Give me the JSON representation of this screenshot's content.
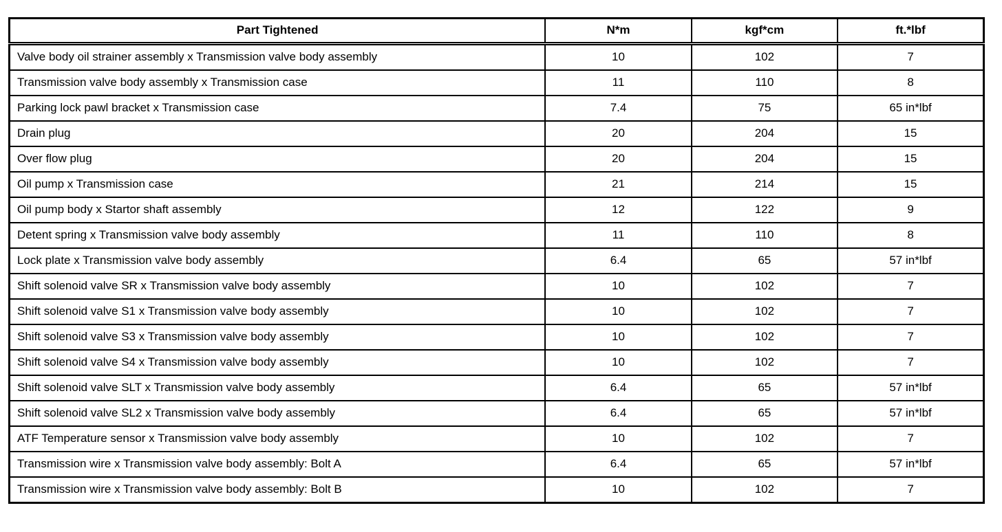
{
  "colors": {
    "background": "#ffffff",
    "border": "#000000",
    "text": "#000000"
  },
  "table": {
    "columns": [
      {
        "key": "part",
        "label": "Part Tightened"
      },
      {
        "key": "nm",
        "label": "N*m"
      },
      {
        "key": "kgfcm",
        "label": "kgf*cm"
      },
      {
        "key": "ftlbf",
        "label": "ft.*lbf"
      }
    ],
    "rows": [
      {
        "part": "Valve body oil strainer assembly x Transmission valve body assembly",
        "nm": "10",
        "kgfcm": "102",
        "ftlbf": "7"
      },
      {
        "part": "Transmission valve body assembly x Transmission case",
        "nm": "11",
        "kgfcm": "110",
        "ftlbf": "8"
      },
      {
        "part": "Parking lock pawl bracket x Transmission case",
        "nm": "7.4",
        "kgfcm": "75",
        "ftlbf": "65 in*lbf"
      },
      {
        "part": "Drain plug",
        "nm": "20",
        "kgfcm": "204",
        "ftlbf": "15"
      },
      {
        "part": "Over flow plug",
        "nm": "20",
        "kgfcm": "204",
        "ftlbf": "15"
      },
      {
        "part": "Oil pump x Transmission case",
        "nm": "21",
        "kgfcm": "214",
        "ftlbf": "15"
      },
      {
        "part": "Oil pump body x Startor shaft assembly",
        "nm": "12",
        "kgfcm": "122",
        "ftlbf": "9"
      },
      {
        "part": "Detent spring x Transmission valve body assembly",
        "nm": "11",
        "kgfcm": "110",
        "ftlbf": "8"
      },
      {
        "part": "Lock plate x Transmission valve body assembly",
        "nm": "6.4",
        "kgfcm": "65",
        "ftlbf": "57 in*lbf"
      },
      {
        "part": "Shift solenoid valve SR x Transmission valve body assembly",
        "nm": "10",
        "kgfcm": "102",
        "ftlbf": "7"
      },
      {
        "part": "Shift solenoid valve S1 x Transmission valve body assembly",
        "nm": "10",
        "kgfcm": "102",
        "ftlbf": "7"
      },
      {
        "part": "Shift solenoid valve S3 x Transmission valve body assembly",
        "nm": "10",
        "kgfcm": "102",
        "ftlbf": "7"
      },
      {
        "part": "Shift solenoid valve S4 x Transmission valve body assembly",
        "nm": "10",
        "kgfcm": "102",
        "ftlbf": "7"
      },
      {
        "part": "Shift solenoid valve SLT x Transmission valve body assembly",
        "nm": "6.4",
        "kgfcm": "65",
        "ftlbf": "57 in*lbf"
      },
      {
        "part": "Shift solenoid valve SL2 x Transmission valve body assembly",
        "nm": "6.4",
        "kgfcm": "65",
        "ftlbf": "57 in*lbf"
      },
      {
        "part": "ATF Temperature sensor x Transmission valve body assembly",
        "nm": "10",
        "kgfcm": "102",
        "ftlbf": "7"
      },
      {
        "part": "Transmission wire x Transmission valve body assembly: Bolt A",
        "nm": "6.4",
        "kgfcm": "65",
        "ftlbf": "57 in*lbf"
      },
      {
        "part": "Transmission wire x Transmission valve body assembly: Bolt B",
        "nm": "10",
        "kgfcm": "102",
        "ftlbf": "7"
      }
    ]
  }
}
